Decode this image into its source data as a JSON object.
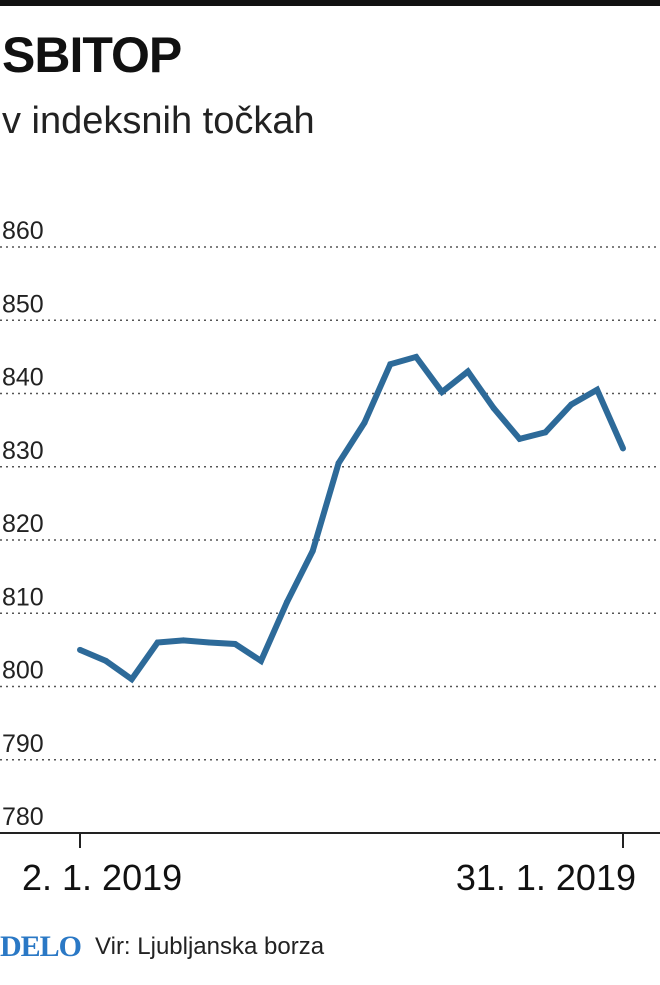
{
  "header": {
    "title": "SBITOP",
    "subtitle": "v indeksnih točkah"
  },
  "footer": {
    "logo": "DELO",
    "source": "Vir: Ljubljanska borza"
  },
  "colors": {
    "line": "#2d6a99",
    "grid": "#555555",
    "logo": "#2a78c5"
  },
  "chart_data": {
    "type": "line",
    "title": "SBITOP",
    "subtitle": "v indeksnih točkah",
    "ylim": [
      780,
      860
    ],
    "yticks": [
      860,
      850,
      840,
      830,
      820,
      810,
      800,
      790,
      780
    ],
    "xtick_labels": [
      "2. 1. 2019",
      "31. 1. 2019"
    ],
    "grid": true,
    "series": [
      {
        "values": [
          805,
          803.5,
          801,
          806,
          806.3,
          806,
          805.8,
          803.5,
          811.5,
          818.5,
          830.5,
          836,
          844,
          845,
          840.2,
          843,
          838,
          833.8,
          834.7,
          838.5,
          840.5,
          832.5
        ]
      }
    ]
  }
}
